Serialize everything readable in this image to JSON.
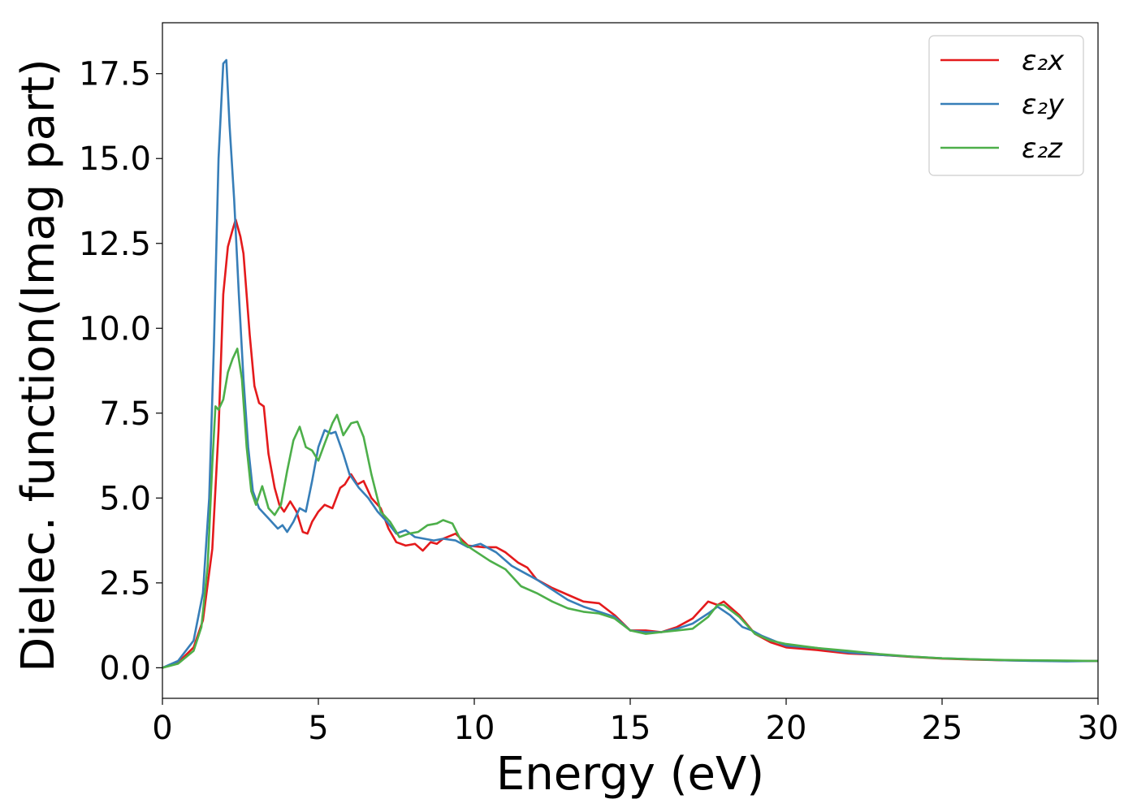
{
  "chart_data": {
    "type": "line",
    "xlabel": "Energy (eV)",
    "ylabel": "Dielec. function(Imag part)",
    "xlim": [
      0,
      30
    ],
    "ylim": [
      -0.9,
      19.0
    ],
    "xticks": [
      0,
      5,
      10,
      15,
      20,
      25,
      30
    ],
    "xtick_labels": [
      "0",
      "5",
      "10",
      "15",
      "20",
      "25",
      "30"
    ],
    "yticks": [
      0.0,
      2.5,
      5.0,
      7.5,
      10.0,
      12.5,
      15.0,
      17.5
    ],
    "ytick_labels": [
      "0.0",
      "2.5",
      "5.0",
      "7.5",
      "10.0",
      "12.5",
      "15.0",
      "17.5"
    ],
    "grid": false,
    "legend_position": "top-right",
    "series": [
      {
        "name": "ε₂x",
        "color": "#e41a1c",
        "points": [
          [
            0,
            0
          ],
          [
            0.5,
            0.15
          ],
          [
            1.0,
            0.6
          ],
          [
            1.3,
            1.4
          ],
          [
            1.6,
            3.5
          ],
          [
            1.8,
            7.0
          ],
          [
            1.95,
            11.0
          ],
          [
            2.1,
            12.4
          ],
          [
            2.25,
            12.9
          ],
          [
            2.35,
            13.2
          ],
          [
            2.5,
            12.7
          ],
          [
            2.6,
            12.2
          ],
          [
            2.8,
            9.8
          ],
          [
            2.95,
            8.3
          ],
          [
            3.1,
            7.8
          ],
          [
            3.25,
            7.7
          ],
          [
            3.4,
            6.3
          ],
          [
            3.6,
            5.3
          ],
          [
            3.75,
            4.8
          ],
          [
            3.9,
            4.6
          ],
          [
            4.1,
            4.9
          ],
          [
            4.3,
            4.6
          ],
          [
            4.5,
            4.0
          ],
          [
            4.65,
            3.95
          ],
          [
            4.8,
            4.3
          ],
          [
            5.0,
            4.6
          ],
          [
            5.2,
            4.8
          ],
          [
            5.45,
            4.7
          ],
          [
            5.7,
            5.3
          ],
          [
            5.85,
            5.4
          ],
          [
            6.05,
            5.7
          ],
          [
            6.25,
            5.4
          ],
          [
            6.45,
            5.5
          ],
          [
            6.7,
            5.0
          ],
          [
            7.0,
            4.7
          ],
          [
            7.25,
            4.1
          ],
          [
            7.5,
            3.7
          ],
          [
            7.8,
            3.6
          ],
          [
            8.1,
            3.65
          ],
          [
            8.35,
            3.45
          ],
          [
            8.6,
            3.7
          ],
          [
            8.8,
            3.65
          ],
          [
            9.0,
            3.8
          ],
          [
            9.4,
            3.95
          ],
          [
            9.8,
            3.6
          ],
          [
            10.3,
            3.55
          ],
          [
            10.7,
            3.55
          ],
          [
            11.0,
            3.4
          ],
          [
            11.4,
            3.1
          ],
          [
            11.7,
            2.95
          ],
          [
            12.0,
            2.6
          ],
          [
            12.5,
            2.35
          ],
          [
            13.0,
            2.15
          ],
          [
            13.5,
            1.95
          ],
          [
            14.0,
            1.9
          ],
          [
            14.5,
            1.55
          ],
          [
            15.0,
            1.1
          ],
          [
            15.5,
            1.1
          ],
          [
            16.0,
            1.05
          ],
          [
            16.5,
            1.2
          ],
          [
            17.0,
            1.45
          ],
          [
            17.5,
            1.95
          ],
          [
            17.8,
            1.85
          ],
          [
            18.0,
            1.95
          ],
          [
            18.5,
            1.55
          ],
          [
            19.0,
            1.0
          ],
          [
            19.5,
            0.75
          ],
          [
            20,
            0.6
          ],
          [
            21,
            0.52
          ],
          [
            22,
            0.42
          ],
          [
            23,
            0.38
          ],
          [
            24,
            0.32
          ],
          [
            25,
            0.27
          ],
          [
            26,
            0.24
          ],
          [
            27,
            0.22
          ],
          [
            28,
            0.21
          ],
          [
            29,
            0.2
          ],
          [
            30,
            0.2
          ]
        ]
      },
      {
        "name": "ε₂y",
        "color": "#377eb8",
        "points": [
          [
            0,
            0
          ],
          [
            0.5,
            0.2
          ],
          [
            1.0,
            0.8
          ],
          [
            1.3,
            2.2
          ],
          [
            1.5,
            5.0
          ],
          [
            1.65,
            9.5
          ],
          [
            1.8,
            15.0
          ],
          [
            1.95,
            17.8
          ],
          [
            2.05,
            17.9
          ],
          [
            2.15,
            16.0
          ],
          [
            2.3,
            13.8
          ],
          [
            2.45,
            11.0
          ],
          [
            2.6,
            8.5
          ],
          [
            2.75,
            6.5
          ],
          [
            2.9,
            5.2
          ],
          [
            3.1,
            4.7
          ],
          [
            3.4,
            4.4
          ],
          [
            3.7,
            4.1
          ],
          [
            3.85,
            4.2
          ],
          [
            4.0,
            4.0
          ],
          [
            4.2,
            4.3
          ],
          [
            4.4,
            4.7
          ],
          [
            4.6,
            4.6
          ],
          [
            4.8,
            5.5
          ],
          [
            5.0,
            6.5
          ],
          [
            5.2,
            7.0
          ],
          [
            5.4,
            6.9
          ],
          [
            5.55,
            6.95
          ],
          [
            5.8,
            6.3
          ],
          [
            6.0,
            5.7
          ],
          [
            6.3,
            5.3
          ],
          [
            6.6,
            5.0
          ],
          [
            6.9,
            4.6
          ],
          [
            7.2,
            4.3
          ],
          [
            7.5,
            3.95
          ],
          [
            7.8,
            4.05
          ],
          [
            8.1,
            3.85
          ],
          [
            8.4,
            3.8
          ],
          [
            8.7,
            3.75
          ],
          [
            9.0,
            3.8
          ],
          [
            9.4,
            3.75
          ],
          [
            9.8,
            3.55
          ],
          [
            10.2,
            3.65
          ],
          [
            10.7,
            3.4
          ],
          [
            11.2,
            3.0
          ],
          [
            11.6,
            2.8
          ],
          [
            12.0,
            2.6
          ],
          [
            12.5,
            2.3
          ],
          [
            13.0,
            2.0
          ],
          [
            13.5,
            1.8
          ],
          [
            14.0,
            1.65
          ],
          [
            14.5,
            1.5
          ],
          [
            15.0,
            1.1
          ],
          [
            15.5,
            1.05
          ],
          [
            16.0,
            1.05
          ],
          [
            16.5,
            1.15
          ],
          [
            17.0,
            1.3
          ],
          [
            17.5,
            1.6
          ],
          [
            17.8,
            1.8
          ],
          [
            18.2,
            1.55
          ],
          [
            18.6,
            1.2
          ],
          [
            18.9,
            1.1
          ],
          [
            19.2,
            0.95
          ],
          [
            19.6,
            0.8
          ],
          [
            20,
            0.65
          ],
          [
            21,
            0.58
          ],
          [
            22,
            0.45
          ],
          [
            23,
            0.38
          ],
          [
            24,
            0.33
          ],
          [
            25,
            0.28
          ],
          [
            26,
            0.25
          ],
          [
            27,
            0.22
          ],
          [
            28,
            0.2
          ],
          [
            29,
            0.19
          ],
          [
            30,
            0.2
          ]
        ]
      },
      {
        "name": "ε₂z",
        "color": "#4daf4a",
        "points": [
          [
            0,
            0
          ],
          [
            0.5,
            0.12
          ],
          [
            1.0,
            0.5
          ],
          [
            1.25,
            1.2
          ],
          [
            1.45,
            3.0
          ],
          [
            1.6,
            6.0
          ],
          [
            1.7,
            7.7
          ],
          [
            1.8,
            7.6
          ],
          [
            1.95,
            7.9
          ],
          [
            2.1,
            8.7
          ],
          [
            2.25,
            9.1
          ],
          [
            2.4,
            9.4
          ],
          [
            2.55,
            8.5
          ],
          [
            2.7,
            6.5
          ],
          [
            2.85,
            5.2
          ],
          [
            3.0,
            4.8
          ],
          [
            3.2,
            5.35
          ],
          [
            3.4,
            4.7
          ],
          [
            3.6,
            4.5
          ],
          [
            3.8,
            4.8
          ],
          [
            4.0,
            5.8
          ],
          [
            4.2,
            6.7
          ],
          [
            4.4,
            7.1
          ],
          [
            4.6,
            6.5
          ],
          [
            4.8,
            6.4
          ],
          [
            5.0,
            6.1
          ],
          [
            5.2,
            6.6
          ],
          [
            5.45,
            7.2
          ],
          [
            5.6,
            7.45
          ],
          [
            5.8,
            6.85
          ],
          [
            6.05,
            7.2
          ],
          [
            6.25,
            7.25
          ],
          [
            6.45,
            6.8
          ],
          [
            6.7,
            5.7
          ],
          [
            7.0,
            4.6
          ],
          [
            7.3,
            4.3
          ],
          [
            7.6,
            3.85
          ],
          [
            7.9,
            3.95
          ],
          [
            8.2,
            4.0
          ],
          [
            8.5,
            4.2
          ],
          [
            8.8,
            4.25
          ],
          [
            9.0,
            4.35
          ],
          [
            9.3,
            4.25
          ],
          [
            9.6,
            3.7
          ],
          [
            10.0,
            3.45
          ],
          [
            10.5,
            3.15
          ],
          [
            11.0,
            2.9
          ],
          [
            11.5,
            2.4
          ],
          [
            12.0,
            2.2
          ],
          [
            12.5,
            1.95
          ],
          [
            13.0,
            1.75
          ],
          [
            13.5,
            1.65
          ],
          [
            14.0,
            1.6
          ],
          [
            14.5,
            1.45
          ],
          [
            15.0,
            1.1
          ],
          [
            15.5,
            1.0
          ],
          [
            16.0,
            1.05
          ],
          [
            16.5,
            1.1
          ],
          [
            17.0,
            1.15
          ],
          [
            17.5,
            1.5
          ],
          [
            17.8,
            1.85
          ],
          [
            18.0,
            1.85
          ],
          [
            18.5,
            1.5
          ],
          [
            19.0,
            1.0
          ],
          [
            19.5,
            0.8
          ],
          [
            20,
            0.7
          ],
          [
            21,
            0.58
          ],
          [
            22,
            0.5
          ],
          [
            23,
            0.4
          ],
          [
            24,
            0.33
          ],
          [
            25,
            0.28
          ],
          [
            26,
            0.25
          ],
          [
            27,
            0.23
          ],
          [
            28,
            0.22
          ],
          [
            29,
            0.21
          ],
          [
            30,
            0.2
          ]
        ]
      }
    ]
  }
}
